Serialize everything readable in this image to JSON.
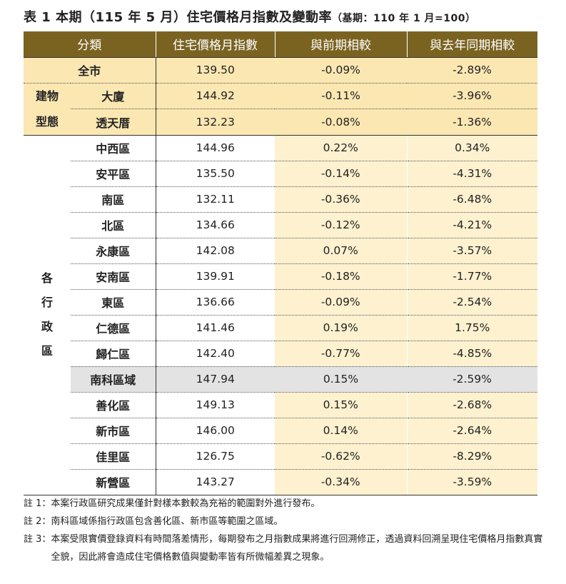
{
  "title": "表 1 本期（115 年 5 月）住宅價格月指數及變動率",
  "title_sub": "（基期：110 年 1 月=100）",
  "headers": [
    "分類",
    "住宅價格月指數",
    "與前期相較",
    "與去年同期相較"
  ],
  "city": {
    "name": "全市",
    "index": "139.50",
    "mom": "-0.09%",
    "yoy": "-2.89%"
  },
  "building_group": "建物型態",
  "building_group_chars": [
    "建物",
    "型態"
  ],
  "building_rows": [
    {
      "name": "大廈",
      "index": "144.92",
      "mom": "-0.11%",
      "yoy": "-3.96%"
    },
    {
      "name": "透天厝",
      "index": "132.23",
      "mom": "-0.08%",
      "yoy": "-1.36%"
    }
  ],
  "district_group": "各行政區",
  "district_group_chars": [
    "各",
    "行",
    "政",
    "區"
  ],
  "district_rows": [
    {
      "name": "中西區",
      "index": "144.96",
      "mom": "0.22%",
      "yoy": "0.34%"
    },
    {
      "name": "安平區",
      "index": "135.50",
      "mom": "-0.14%",
      "yoy": "-4.31%"
    },
    {
      "name": "南區",
      "index": "132.11",
      "mom": "-0.36%",
      "yoy": "-6.48%"
    },
    {
      "name": "北區",
      "index": "134.66",
      "mom": "-0.12%",
      "yoy": "-4.21%"
    },
    {
      "name": "永康區",
      "index": "142.08",
      "mom": "0.07%",
      "yoy": "-3.57%"
    },
    {
      "name": "安南區",
      "index": "139.91",
      "mom": "-0.18%",
      "yoy": "-1.77%"
    },
    {
      "name": "東區",
      "index": "136.66",
      "mom": "-0.09%",
      "yoy": "-2.54%"
    },
    {
      "name": "仁德區",
      "index": "141.46",
      "mom": "0.19%",
      "yoy": "1.75%"
    },
    {
      "name": "歸仁區",
      "index": "142.40",
      "mom": "-0.77%",
      "yoy": "-4.85%"
    },
    {
      "name": "南科區域",
      "index": "147.94",
      "mom": "0.15%",
      "yoy": "-2.59%"
    },
    {
      "name": "善化區",
      "index": "149.13",
      "mom": "0.15%",
      "yoy": "-2.68%"
    },
    {
      "name": "新市區",
      "index": "146.00",
      "mom": "0.14%",
      "yoy": "-2.64%"
    },
    {
      "name": "佳里區",
      "index": "126.75",
      "mom": "-0.62%",
      "yoy": "-8.29%"
    },
    {
      "name": "新營區",
      "index": "143.27",
      "mom": "-0.34%",
      "yoy": "-3.59%"
    }
  ],
  "notes": [
    {
      "tag": "註 1：",
      "text": "本案行政區研究成果僅針對樣本數較為充裕的範圍對外進行發布。"
    },
    {
      "tag": "註 2：",
      "text": "南科區域係指行政區包含善化區、新市區等範圍之區域。"
    },
    {
      "tag": "註 3：",
      "text": "本案受限實價登錄資料有時間落差情形，每期發布之月指數成果將進行回溯修正，透過資料回溯呈現住宅價格月指數真實全貌，因此將會造成住宅價格數值與變動率皆有所微幅差異之現象。"
    }
  ],
  "colors": {
    "header": "#7a6321",
    "highlight": "#fbe7b2",
    "rate_bg": "#fdf1cf",
    "grey_row": "#e3e3e3"
  }
}
